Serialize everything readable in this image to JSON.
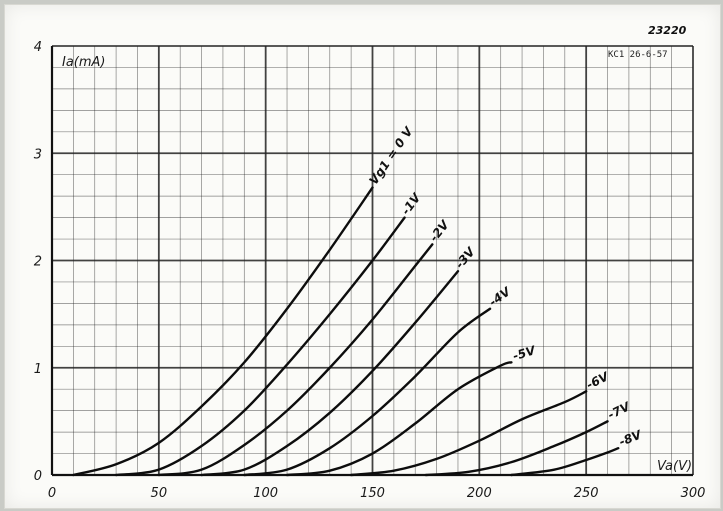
{
  "drawing_number": "23220",
  "stamp": "KC1  26-6-57",
  "chart_data": {
    "type": "line",
    "title": "",
    "xlabel": "Va(V)",
    "ylabel": "Ia(mA)",
    "xlim": [
      0,
      300
    ],
    "ylim": [
      0,
      4
    ],
    "x_ticks": [
      0,
      50,
      100,
      150,
      200,
      250,
      300
    ],
    "y_ticks": [
      0,
      1,
      2,
      3,
      4
    ],
    "grid": true,
    "legend": "curve labels at line ends",
    "series": [
      {
        "name": "Vg1 = 0 V",
        "label_position": "end",
        "x": [
          10,
          30,
          50,
          70,
          90,
          110,
          130,
          150
        ],
        "y": [
          0.0,
          0.1,
          0.3,
          0.64,
          1.05,
          1.55,
          2.1,
          2.68
        ]
      },
      {
        "name": "-1V",
        "x": [
          30,
          50,
          70,
          90,
          110,
          130,
          150,
          165
        ],
        "y": [
          0.0,
          0.05,
          0.27,
          0.6,
          1.03,
          1.5,
          2.0,
          2.4
        ]
      },
      {
        "name": "-2V",
        "x": [
          50,
          70,
          90,
          110,
          130,
          150,
          170,
          178
        ],
        "y": [
          0.0,
          0.05,
          0.28,
          0.6,
          1.0,
          1.45,
          1.95,
          2.15
        ]
      },
      {
        "name": "-3V",
        "x": [
          70,
          90,
          110,
          130,
          150,
          170,
          190
        ],
        "y": [
          0.0,
          0.05,
          0.27,
          0.58,
          0.97,
          1.42,
          1.9
        ]
      },
      {
        "name": "-4V",
        "x": [
          90,
          110,
          130,
          150,
          170,
          190,
          205
        ],
        "y": [
          0.0,
          0.05,
          0.25,
          0.55,
          0.92,
          1.33,
          1.55
        ]
      },
      {
        "name": "-5V",
        "x": [
          110,
          130,
          150,
          170,
          190,
          210,
          215
        ],
        "y": [
          0.0,
          0.04,
          0.2,
          0.48,
          0.8,
          1.02,
          1.05
        ]
      },
      {
        "name": "-6V",
        "x": [
          140,
          160,
          180,
          200,
          220,
          240,
          250
        ],
        "y": [
          0.0,
          0.04,
          0.15,
          0.32,
          0.52,
          0.68,
          0.78
        ]
      },
      {
        "name": "-7V",
        "x": [
          175,
          195,
          215,
          235,
          250,
          260
        ],
        "y": [
          0.0,
          0.03,
          0.12,
          0.27,
          0.4,
          0.5
        ]
      },
      {
        "name": "-8V",
        "x": [
          215,
          235,
          250,
          260,
          265
        ],
        "y": [
          0.0,
          0.05,
          0.14,
          0.21,
          0.25
        ]
      }
    ]
  }
}
